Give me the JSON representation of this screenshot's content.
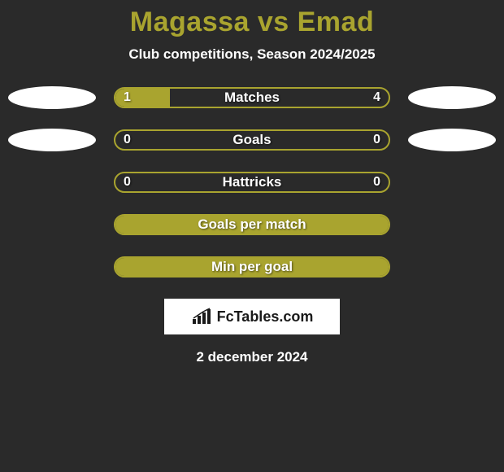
{
  "header": {
    "title": "Magassa vs Emad",
    "subtitle": "Club competitions, Season 2024/2025"
  },
  "rows": [
    {
      "label": "Matches",
      "left": "1",
      "right": "4",
      "show_values": true,
      "has_ellipse": true,
      "fill_left_pct": 20,
      "fill_full": false
    },
    {
      "label": "Goals",
      "left": "0",
      "right": "0",
      "show_values": true,
      "has_ellipse": true,
      "fill_left_pct": 0,
      "fill_full": false
    },
    {
      "label": "Hattricks",
      "left": "0",
      "right": "0",
      "show_values": true,
      "has_ellipse": false,
      "fill_left_pct": 0,
      "fill_full": false
    },
    {
      "label": "Goals per match",
      "left": "",
      "right": "",
      "show_values": false,
      "has_ellipse": false,
      "fill_left_pct": 0,
      "fill_full": true
    },
    {
      "label": "Min per goal",
      "left": "",
      "right": "",
      "show_values": false,
      "has_ellipse": false,
      "fill_left_pct": 0,
      "fill_full": true
    }
  ],
  "logo": {
    "text": "FcTables.com"
  },
  "date": "2 december 2024",
  "colors": {
    "accent": "#a9a42f",
    "background": "#2a2a2a",
    "text_light": "#ffffff"
  }
}
